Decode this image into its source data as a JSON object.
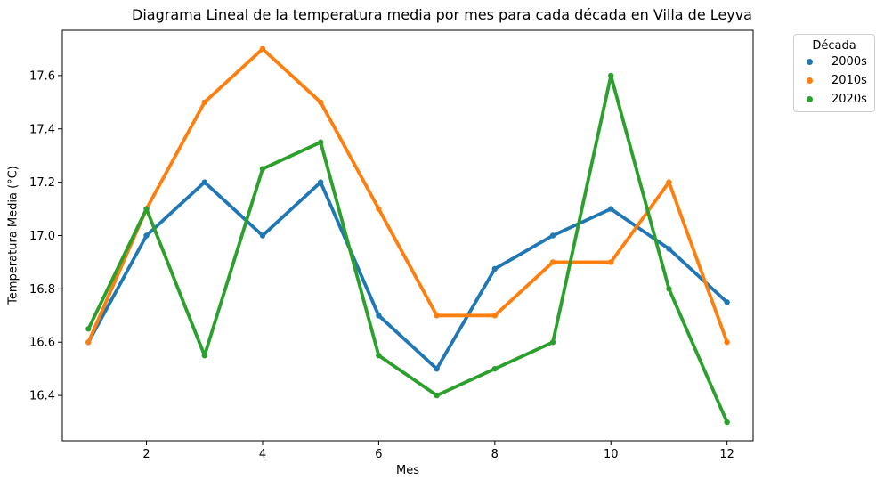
{
  "chart_data": {
    "type": "line",
    "title": "Diagrama Lineal de la temperatura media por mes para cada década en Villa de Leyva",
    "xlabel": "Mes",
    "ylabel": "Temperatura Media (°C)",
    "x": [
      1,
      2,
      3,
      4,
      5,
      6,
      7,
      8,
      9,
      10,
      11,
      12
    ],
    "xlim": [
      0.55,
      12.45
    ],
    "ylim": [
      16.23,
      17.77
    ],
    "xticks": [
      2,
      4,
      6,
      8,
      10,
      12
    ],
    "yticks": [
      16.4,
      16.6,
      16.8,
      17.0,
      17.2,
      17.4,
      17.6
    ],
    "ytick_labels": [
      "16.4",
      "16.6",
      "16.8",
      "17.0",
      "17.2",
      "17.4",
      "17.6"
    ],
    "grid": false,
    "legend": {
      "title": "Década",
      "placement": "outside top-right"
    },
    "series": [
      {
        "name": "2000s",
        "color": "#1f77b4",
        "values": [
          16.6,
          17.0,
          17.2,
          17.0,
          17.2,
          16.7,
          16.5,
          16.875,
          17.0,
          17.1,
          16.95,
          16.75
        ]
      },
      {
        "name": "2010s",
        "color": "#ff7f0e",
        "values": [
          16.6,
          17.1,
          17.5,
          17.7,
          17.5,
          17.1,
          16.7,
          16.7,
          16.9,
          16.9,
          17.2,
          16.6
        ]
      },
      {
        "name": "2020s",
        "color": "#2ca02c",
        "values": [
          16.65,
          17.1,
          16.55,
          17.25,
          17.35,
          16.55,
          16.4,
          16.5,
          16.6,
          17.6,
          16.8,
          16.3
        ]
      }
    ]
  }
}
